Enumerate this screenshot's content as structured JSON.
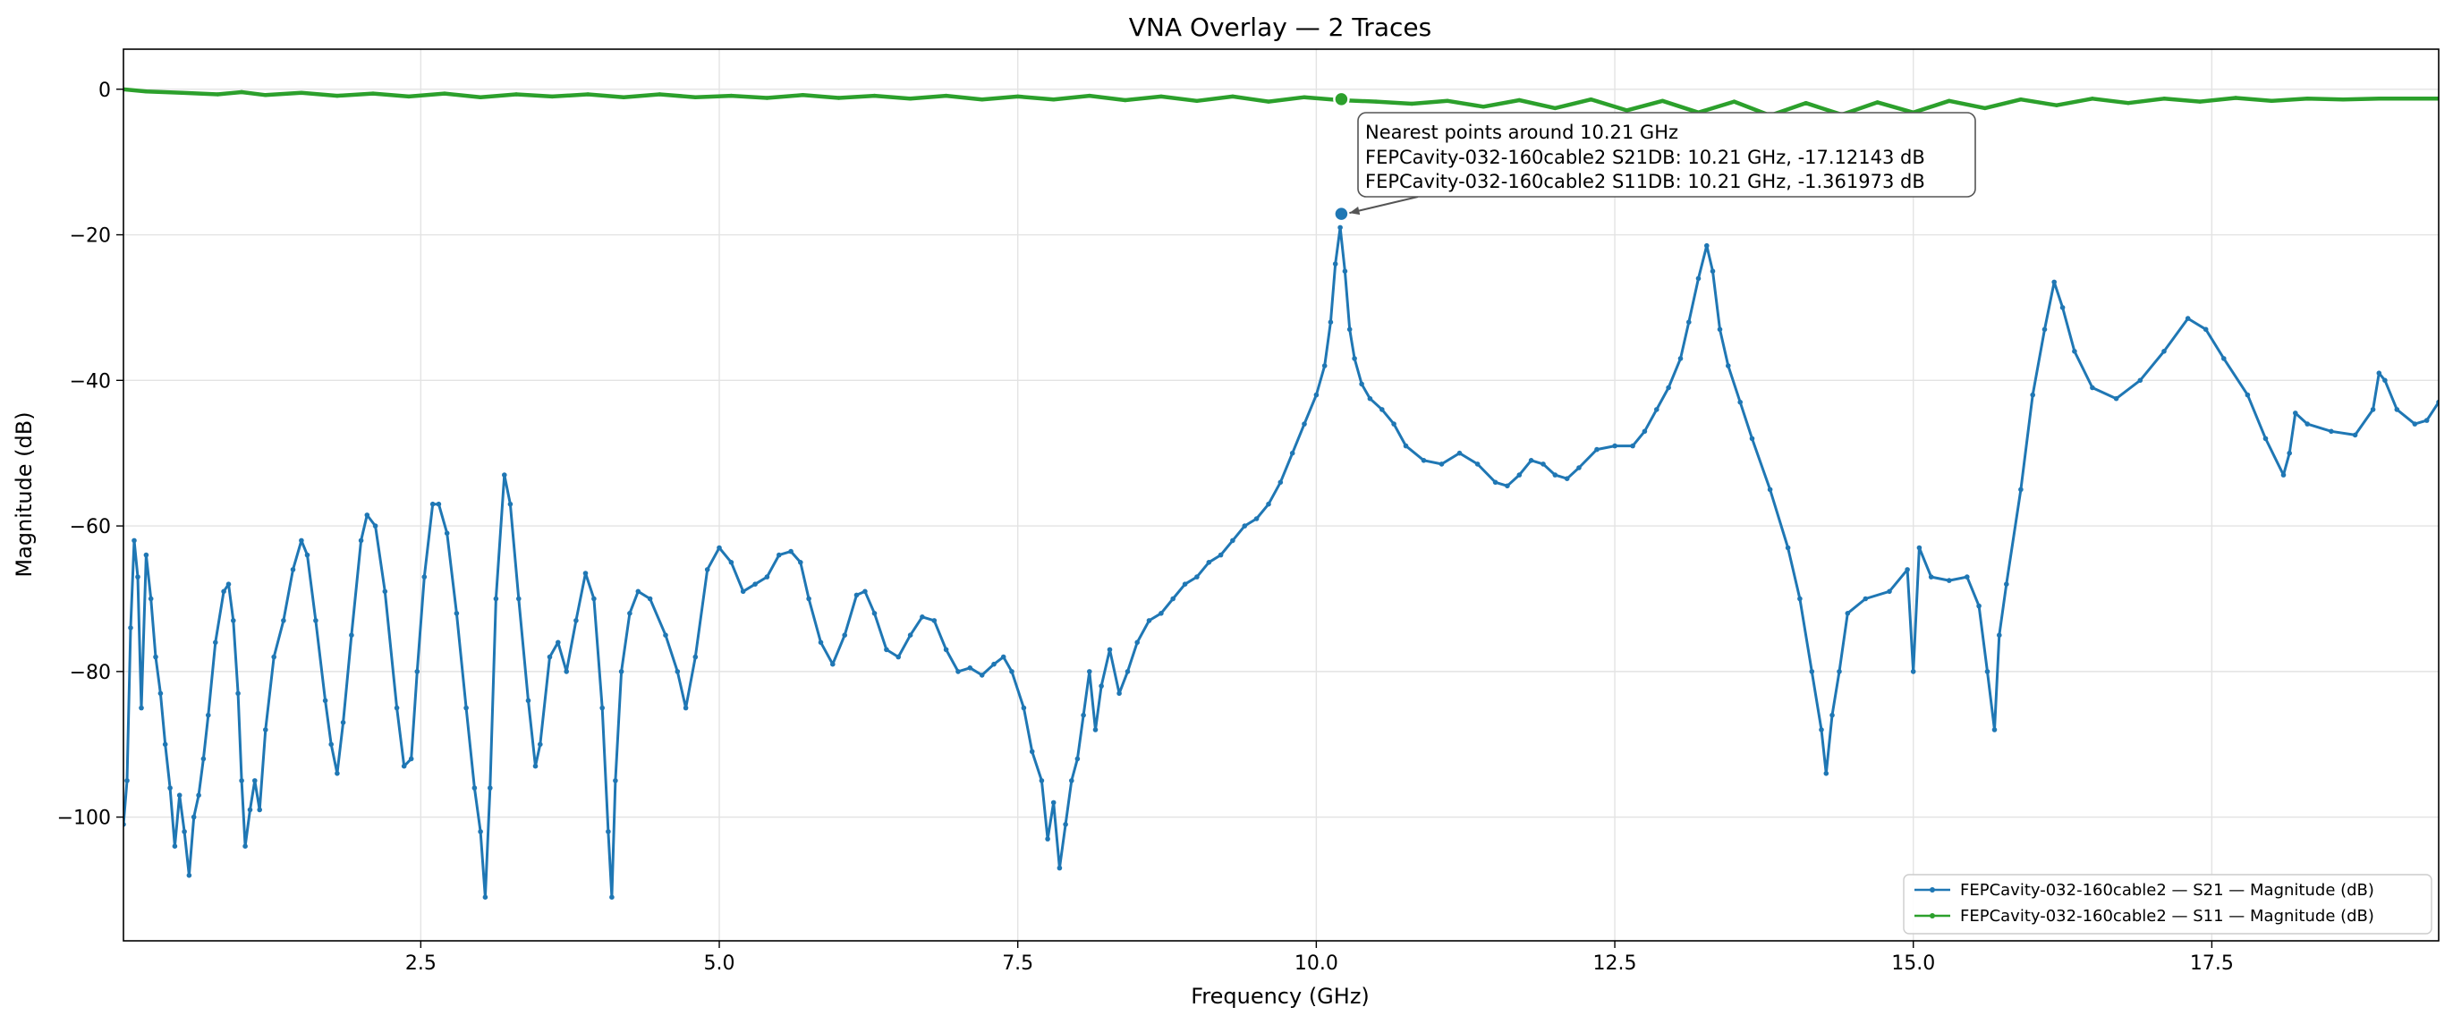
{
  "chart_data": {
    "type": "line",
    "title": "VNA Overlay — 2 Traces",
    "xlabel": "Frequency (GHz)",
    "ylabel": "Magnitude (dB)",
    "xlim": [
      0.01,
      19.4
    ],
    "ylim": [
      -117,
      5.5
    ],
    "xticks": [
      2.5,
      5.0,
      7.5,
      10.0,
      12.5,
      15.0,
      17.5
    ],
    "xtick_labels": [
      "2.5",
      "5.0",
      "7.5",
      "10.0",
      "12.5",
      "15.0",
      "17.5"
    ],
    "yticks": [
      0,
      -20,
      -40,
      -60,
      -80,
      -100
    ],
    "ytick_labels": [
      "0",
      "−20",
      "−40",
      "−60",
      "−80",
      "−100"
    ],
    "grid": true,
    "legend_position": "lower-right",
    "series": [
      {
        "name": "FEPCavity-032-160cable2 — S21 — Magnitude (dB)",
        "color": "#1f77b4",
        "points": [
          [
            0.01,
            -101
          ],
          [
            0.04,
            -95
          ],
          [
            0.07,
            -74
          ],
          [
            0.1,
            -62
          ],
          [
            0.13,
            -67
          ],
          [
            0.16,
            -85
          ],
          [
            0.2,
            -64
          ],
          [
            0.24,
            -70
          ],
          [
            0.28,
            -78
          ],
          [
            0.32,
            -83
          ],
          [
            0.36,
            -90
          ],
          [
            0.4,
            -96
          ],
          [
            0.44,
            -104
          ],
          [
            0.48,
            -97
          ],
          [
            0.52,
            -102
          ],
          [
            0.56,
            -108
          ],
          [
            0.6,
            -100
          ],
          [
            0.64,
            -97
          ],
          [
            0.68,
            -92
          ],
          [
            0.72,
            -86
          ],
          [
            0.78,
            -76
          ],
          [
            0.85,
            -69
          ],
          [
            0.89,
            -68
          ],
          [
            0.93,
            -73
          ],
          [
            0.97,
            -83
          ],
          [
            1.0,
            -95
          ],
          [
            1.03,
            -104
          ],
          [
            1.07,
            -99
          ],
          [
            1.11,
            -95
          ],
          [
            1.15,
            -99
          ],
          [
            1.2,
            -88
          ],
          [
            1.27,
            -78
          ],
          [
            1.35,
            -73
          ],
          [
            1.43,
            -66
          ],
          [
            1.5,
            -62
          ],
          [
            1.55,
            -64
          ],
          [
            1.62,
            -73
          ],
          [
            1.7,
            -84
          ],
          [
            1.75,
            -90
          ],
          [
            1.8,
            -94
          ],
          [
            1.85,
            -87
          ],
          [
            1.92,
            -75
          ],
          [
            2.0,
            -62
          ],
          [
            2.05,
            -58.5
          ],
          [
            2.12,
            -60
          ],
          [
            2.2,
            -69
          ],
          [
            2.3,
            -85
          ],
          [
            2.36,
            -93
          ],
          [
            2.42,
            -92
          ],
          [
            2.47,
            -80
          ],
          [
            2.53,
            -67
          ],
          [
            2.6,
            -57
          ],
          [
            2.65,
            -57
          ],
          [
            2.72,
            -61
          ],
          [
            2.8,
            -72
          ],
          [
            2.88,
            -85
          ],
          [
            2.95,
            -96
          ],
          [
            3.0,
            -102
          ],
          [
            3.04,
            -111
          ],
          [
            3.08,
            -96
          ],
          [
            3.13,
            -70
          ],
          [
            3.2,
            -53
          ],
          [
            3.25,
            -57
          ],
          [
            3.32,
            -70
          ],
          [
            3.4,
            -84
          ],
          [
            3.46,
            -93
          ],
          [
            3.5,
            -90
          ],
          [
            3.58,
            -78
          ],
          [
            3.65,
            -76
          ],
          [
            3.72,
            -80
          ],
          [
            3.8,
            -73
          ],
          [
            3.88,
            -66.5
          ],
          [
            3.95,
            -70
          ],
          [
            4.02,
            -85
          ],
          [
            4.07,
            -102
          ],
          [
            4.1,
            -111
          ],
          [
            4.13,
            -95
          ],
          [
            4.18,
            -80
          ],
          [
            4.25,
            -72
          ],
          [
            4.32,
            -69
          ],
          [
            4.42,
            -70
          ],
          [
            4.55,
            -75
          ],
          [
            4.65,
            -80
          ],
          [
            4.72,
            -85
          ],
          [
            4.8,
            -78
          ],
          [
            4.9,
            -66
          ],
          [
            5.0,
            -63
          ],
          [
            5.1,
            -65
          ],
          [
            5.2,
            -69
          ],
          [
            5.3,
            -68
          ],
          [
            5.4,
            -67
          ],
          [
            5.5,
            -64
          ],
          [
            5.6,
            -63.5
          ],
          [
            5.68,
            -65
          ],
          [
            5.75,
            -70
          ],
          [
            5.85,
            -76
          ],
          [
            5.95,
            -79
          ],
          [
            6.05,
            -75
          ],
          [
            6.15,
            -69.5
          ],
          [
            6.22,
            -69
          ],
          [
            6.3,
            -72
          ],
          [
            6.4,
            -77
          ],
          [
            6.5,
            -78
          ],
          [
            6.6,
            -75
          ],
          [
            6.7,
            -72.5
          ],
          [
            6.8,
            -73
          ],
          [
            6.9,
            -77
          ],
          [
            7.0,
            -80
          ],
          [
            7.1,
            -79.5
          ],
          [
            7.2,
            -80.5
          ],
          [
            7.3,
            -79
          ],
          [
            7.38,
            -78
          ],
          [
            7.45,
            -80
          ],
          [
            7.55,
            -85
          ],
          [
            7.62,
            -91
          ],
          [
            7.7,
            -95
          ],
          [
            7.75,
            -103
          ],
          [
            7.8,
            -98
          ],
          [
            7.85,
            -107
          ],
          [
            7.9,
            -101
          ],
          [
            7.95,
            -95
          ],
          [
            8.0,
            -92
          ],
          [
            8.05,
            -86
          ],
          [
            8.1,
            -80
          ],
          [
            8.15,
            -88
          ],
          [
            8.2,
            -82
          ],
          [
            8.27,
            -77
          ],
          [
            8.35,
            -83
          ],
          [
            8.42,
            -80
          ],
          [
            8.5,
            -76
          ],
          [
            8.6,
            -73
          ],
          [
            8.7,
            -72
          ],
          [
            8.8,
            -70
          ],
          [
            8.9,
            -68
          ],
          [
            9.0,
            -67
          ],
          [
            9.1,
            -65
          ],
          [
            9.2,
            -64
          ],
          [
            9.3,
            -62
          ],
          [
            9.4,
            -60
          ],
          [
            9.5,
            -59
          ],
          [
            9.6,
            -57
          ],
          [
            9.7,
            -54
          ],
          [
            9.8,
            -50
          ],
          [
            9.9,
            -46
          ],
          [
            10.0,
            -42
          ],
          [
            10.07,
            -38
          ],
          [
            10.12,
            -32
          ],
          [
            10.16,
            -24
          ],
          [
            10.2,
            -19
          ],
          [
            10.24,
            -25
          ],
          [
            10.28,
            -33
          ],
          [
            10.32,
            -37
          ],
          [
            10.38,
            -40.5
          ],
          [
            10.45,
            -42.5
          ],
          [
            10.55,
            -44
          ],
          [
            10.65,
            -46
          ],
          [
            10.75,
            -49
          ],
          [
            10.9,
            -51
          ],
          [
            11.05,
            -51.5
          ],
          [
            11.2,
            -50
          ],
          [
            11.35,
            -51.5
          ],
          [
            11.5,
            -54
          ],
          [
            11.6,
            -54.5
          ],
          [
            11.7,
            -53
          ],
          [
            11.8,
            -51
          ],
          [
            11.9,
            -51.5
          ],
          [
            12.0,
            -53
          ],
          [
            12.1,
            -53.5
          ],
          [
            12.2,
            -52
          ],
          [
            12.35,
            -49.5
          ],
          [
            12.5,
            -49
          ],
          [
            12.65,
            -49
          ],
          [
            12.75,
            -47
          ],
          [
            12.85,
            -44
          ],
          [
            12.95,
            -41
          ],
          [
            13.05,
            -37
          ],
          [
            13.12,
            -32
          ],
          [
            13.2,
            -26
          ],
          [
            13.27,
            -21.5
          ],
          [
            13.32,
            -25
          ],
          [
            13.38,
            -33
          ],
          [
            13.45,
            -38
          ],
          [
            13.55,
            -43
          ],
          [
            13.65,
            -48
          ],
          [
            13.8,
            -55
          ],
          [
            13.95,
            -63
          ],
          [
            14.05,
            -70
          ],
          [
            14.15,
            -80
          ],
          [
            14.23,
            -88
          ],
          [
            14.27,
            -94
          ],
          [
            14.32,
            -86
          ],
          [
            14.38,
            -80
          ],
          [
            14.45,
            -72
          ],
          [
            14.6,
            -70
          ],
          [
            14.8,
            -69
          ],
          [
            14.95,
            -66
          ],
          [
            15.0,
            -80
          ],
          [
            15.05,
            -63
          ],
          [
            15.15,
            -67
          ],
          [
            15.3,
            -67.5
          ],
          [
            15.45,
            -67
          ],
          [
            15.55,
            -71
          ],
          [
            15.62,
            -80
          ],
          [
            15.68,
            -88
          ],
          [
            15.72,
            -75
          ],
          [
            15.78,
            -68
          ],
          [
            15.9,
            -55
          ],
          [
            16.0,
            -42
          ],
          [
            16.1,
            -33
          ],
          [
            16.18,
            -26.5
          ],
          [
            16.25,
            -30
          ],
          [
            16.35,
            -36
          ],
          [
            16.5,
            -41
          ],
          [
            16.7,
            -42.5
          ],
          [
            16.9,
            -40
          ],
          [
            17.1,
            -36
          ],
          [
            17.3,
            -31.5
          ],
          [
            17.45,
            -33
          ],
          [
            17.6,
            -37
          ],
          [
            17.8,
            -42
          ],
          [
            17.95,
            -48
          ],
          [
            18.1,
            -53
          ],
          [
            18.15,
            -50
          ],
          [
            18.2,
            -44.5
          ],
          [
            18.3,
            -46
          ],
          [
            18.5,
            -47
          ],
          [
            18.7,
            -47.5
          ],
          [
            18.85,
            -44
          ],
          [
            18.9,
            -39
          ],
          [
            18.95,
            -40
          ],
          [
            19.05,
            -44
          ],
          [
            19.2,
            -46
          ],
          [
            19.3,
            -45.5
          ],
          [
            19.4,
            -43
          ]
        ]
      },
      {
        "name": "FEPCavity-032-160cable2 — S11 — Magnitude (dB)",
        "color": "#2ca02c",
        "points": [
          [
            0.0,
            0.0
          ],
          [
            0.2,
            -0.3
          ],
          [
            0.5,
            -0.5
          ],
          [
            0.8,
            -0.7
          ],
          [
            1.0,
            -0.4
          ],
          [
            1.2,
            -0.8
          ],
          [
            1.5,
            -0.5
          ],
          [
            1.8,
            -0.9
          ],
          [
            2.1,
            -0.6
          ],
          [
            2.4,
            -1.0
          ],
          [
            2.7,
            -0.6
          ],
          [
            3.0,
            -1.1
          ],
          [
            3.3,
            -0.7
          ],
          [
            3.6,
            -1.0
          ],
          [
            3.9,
            -0.7
          ],
          [
            4.2,
            -1.1
          ],
          [
            4.5,
            -0.7
          ],
          [
            4.8,
            -1.1
          ],
          [
            5.1,
            -0.9
          ],
          [
            5.4,
            -1.2
          ],
          [
            5.7,
            -0.8
          ],
          [
            6.0,
            -1.2
          ],
          [
            6.3,
            -0.9
          ],
          [
            6.6,
            -1.3
          ],
          [
            6.9,
            -0.9
          ],
          [
            7.2,
            -1.4
          ],
          [
            7.5,
            -1.0
          ],
          [
            7.8,
            -1.4
          ],
          [
            8.1,
            -0.9
          ],
          [
            8.4,
            -1.5
          ],
          [
            8.7,
            -1.0
          ],
          [
            9.0,
            -1.6
          ],
          [
            9.3,
            -1.0
          ],
          [
            9.6,
            -1.7
          ],
          [
            9.9,
            -1.1
          ],
          [
            10.2,
            -1.5
          ],
          [
            10.5,
            -1.7
          ],
          [
            10.8,
            -2.0
          ],
          [
            11.1,
            -1.6
          ],
          [
            11.4,
            -2.4
          ],
          [
            11.7,
            -1.5
          ],
          [
            12.0,
            -2.6
          ],
          [
            12.3,
            -1.4
          ],
          [
            12.6,
            -2.9
          ],
          [
            12.9,
            -1.6
          ],
          [
            13.2,
            -3.2
          ],
          [
            13.5,
            -1.7
          ],
          [
            13.8,
            -3.6
          ],
          [
            14.1,
            -1.9
          ],
          [
            14.4,
            -3.5
          ],
          [
            14.7,
            -1.8
          ],
          [
            15.0,
            -3.2
          ],
          [
            15.3,
            -1.6
          ],
          [
            15.6,
            -2.6
          ],
          [
            15.9,
            -1.4
          ],
          [
            16.2,
            -2.2
          ],
          [
            16.5,
            -1.3
          ],
          [
            16.8,
            -1.9
          ],
          [
            17.1,
            -1.3
          ],
          [
            17.4,
            -1.7
          ],
          [
            17.7,
            -1.2
          ],
          [
            18.0,
            -1.6
          ],
          [
            18.3,
            -1.3
          ],
          [
            18.6,
            -1.4
          ],
          [
            18.9,
            -1.3
          ],
          [
            19.2,
            -1.3
          ],
          [
            19.4,
            -1.3
          ]
        ]
      }
    ],
    "markers": [
      {
        "x": 10.21,
        "y": -17.12143,
        "color": "#1f77b4"
      },
      {
        "x": 10.21,
        "y": -1.361973,
        "color": "#2ca02c"
      }
    ],
    "annotation": {
      "lines": [
        "Nearest points around 10.21 GHz",
        "FEPCavity-032-160cable2 S21DB: 10.21 GHz, -17.12143 dB",
        "FEPCavity-032-160cable2 S11DB: 10.21 GHz, -1.361973 dB"
      ],
      "target_x": 10.21,
      "target_y": -17.12143
    }
  }
}
